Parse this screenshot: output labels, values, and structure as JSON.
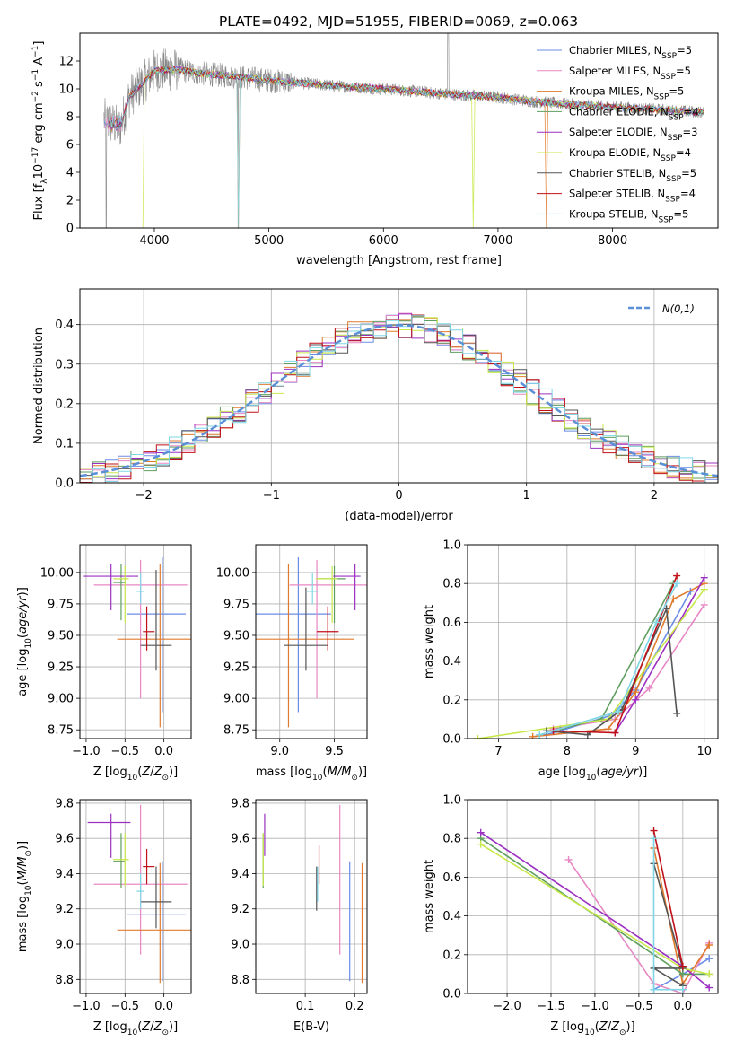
{
  "figure": {
    "title": "PLATE=0492, MJD=51955, FIBERID=0069, z=0.063"
  },
  "models": [
    {
      "name": "Chabrier MILES",
      "label": "Chabrier MILES, N",
      "nssp": "=5",
      "color": "#6b8ce6"
    },
    {
      "name": "Salpeter MILES",
      "label": "Salpeter MILES, N",
      "nssp": "=5",
      "color": "#e887c4"
    },
    {
      "name": "Kroupa MILES",
      "label": "Kroupa MILES, N",
      "nssp": "=5",
      "color": "#e07b2e"
    },
    {
      "name": "Chabrier ELODIE",
      "label": "Chabrier ELODIE, N",
      "nssp": "=4",
      "color": "#5f9e5f"
    },
    {
      "name": "Salpeter ELODIE",
      "label": "Salpeter ELODIE, N",
      "nssp": "=3",
      "color": "#9b30c0"
    },
    {
      "name": "Kroupa ELODIE",
      "label": "Kroupa ELODIE, N",
      "nssp": "=4",
      "color": "#c8e84a"
    },
    {
      "name": "Chabrier STELIB",
      "label": "Chabrier STELIB, N",
      "nssp": "=5",
      "color": "#555555"
    },
    {
      "name": "Salpeter STELIB",
      "label": "Salpeter STELIB, N",
      "nssp": "=4",
      "color": "#c0101a"
    },
    {
      "name": "Kroupa STELIB",
      "label": "Kroupa STELIB, N",
      "nssp": "=5",
      "color": "#7fd6e6"
    }
  ],
  "chart_data": [
    {
      "id": "spectrum",
      "type": "line",
      "xlabel": "wavelength [Angstrom, rest frame]",
      "ylabel": "Flux [f",
      "xlim": [
        3350,
        8920
      ],
      "ylim": [
        0,
        14
      ],
      "xticks": [
        4000,
        5000,
        6000,
        7000,
        8000
      ],
      "yticks": [
        0,
        2,
        4,
        6,
        8,
        10,
        12
      ],
      "continuum": [
        [
          3560,
          7.8
        ],
        [
          3700,
          7.2
        ],
        [
          3780,
          9.4
        ],
        [
          3900,
          10.4
        ],
        [
          4000,
          11.3
        ],
        [
          4200,
          11.4
        ],
        [
          4400,
          11.1
        ],
        [
          4700,
          10.9
        ],
        [
          5000,
          10.6
        ],
        [
          5300,
          10.4
        ],
        [
          5600,
          10.2
        ],
        [
          6000,
          10.0
        ],
        [
          6300,
          9.8
        ],
        [
          6600,
          9.6
        ],
        [
          7000,
          9.4
        ],
        [
          7300,
          9.1
        ],
        [
          7600,
          8.9
        ],
        [
          8000,
          8.7
        ],
        [
          8400,
          8.5
        ],
        [
          8800,
          8.3
        ]
      ],
      "data_range": [
        3560,
        8800
      ],
      "model_range": [
        3560,
        8800
      ],
      "legend_position": "upper right"
    },
    {
      "id": "residuals",
      "type": "histogram",
      "xlabel": "(data-model)/error",
      "ylabel": "Normed distribution",
      "xlim": [
        -2.5,
        2.5
      ],
      "ylim": [
        0,
        0.49
      ],
      "xticks": [
        -2,
        -1,
        0,
        1,
        2
      ],
      "yticks": [
        0,
        0.1,
        0.2,
        0.3,
        0.4
      ],
      "grid": true,
      "reference_curve": "N(0,1)",
      "bin_width": 0.1,
      "legend_position": "upper right"
    },
    {
      "id": "age-vs-Z",
      "type": "scatter",
      "xlabel": "Z [log",
      "ylabel": "age  [log",
      "xlim": [
        -1.08,
        0.35
      ],
      "ylim": [
        8.68,
        10.22
      ],
      "xticks": [
        -1.0,
        -0.5,
        0.0
      ],
      "yticks": [
        8.75,
        9.0,
        9.25,
        9.5,
        9.75,
        10.0
      ],
      "grid": true,
      "points": [
        {
          "x": -0.02,
          "y": 9.67,
          "xerr": [
            0.45,
            0.3
          ],
          "yerr": [
            0.78,
            0.45
          ],
          "model": 0
        },
        {
          "x": -0.3,
          "y": 9.9,
          "xerr": [
            0.6,
            0.6
          ],
          "yerr": [
            0.9,
            0.2
          ],
          "model": 1
        },
        {
          "x": -0.05,
          "y": 9.47,
          "xerr": [
            0.55,
            0.4
          ],
          "yerr": [
            0.7,
            0.6
          ],
          "model": 2
        },
        {
          "x": -0.55,
          "y": 9.92,
          "xerr": [
            0.1,
            0.05
          ],
          "yerr": [
            0.3,
            0.15
          ],
          "model": 3
        },
        {
          "x": -0.68,
          "y": 9.97,
          "xerr": [
            0.35,
            0.35
          ],
          "yerr": [
            0.27,
            0.1
          ],
          "model": 4
        },
        {
          "x": -0.5,
          "y": 9.95,
          "xerr": [
            0.15,
            0.05
          ],
          "yerr": [
            0.35,
            0.1
          ],
          "model": 5
        },
        {
          "x": -0.1,
          "y": 9.42,
          "xerr": [
            0.2,
            0.2
          ],
          "yerr": [
            0.2,
            0.6
          ],
          "model": 6
        },
        {
          "x": -0.22,
          "y": 9.53,
          "xerr": [
            0.05,
            0.1
          ],
          "yerr": [
            0.15,
            0.2
          ],
          "model": 7
        },
        {
          "x": -0.3,
          "y": 9.85,
          "xerr": [
            0.05,
            0.05
          ],
          "yerr": [
            0.1,
            0.15
          ],
          "model": 8
        }
      ]
    },
    {
      "id": "age-vs-mass",
      "type": "scatter",
      "xlabel": "mass [log",
      "ylabel": "",
      "xlim": [
        8.78,
        9.8
      ],
      "ylim": [
        8.68,
        10.22
      ],
      "xticks": [
        9.0,
        9.5
      ],
      "yticks": [
        8.75,
        9.0,
        9.25,
        9.5,
        9.75,
        10.0
      ],
      "grid": true,
      "points": [
        {
          "x": 9.17,
          "y": 9.67,
          "xerr": [
            0.4,
            0.3
          ],
          "yerr": [
            0.78,
            0.45
          ],
          "model": 0
        },
        {
          "x": 9.34,
          "y": 9.9,
          "xerr": [
            0.25,
            0.6
          ],
          "yerr": [
            0.9,
            0.2
          ],
          "model": 1
        },
        {
          "x": 9.08,
          "y": 9.47,
          "xerr": [
            0.3,
            0.6
          ],
          "yerr": [
            0.7,
            0.6
          ],
          "model": 2
        },
        {
          "x": 9.5,
          "y": 9.95,
          "xerr": [
            0.15,
            0.1
          ],
          "yerr": [
            0.35,
            0.1
          ],
          "model": 3
        },
        {
          "x": 9.69,
          "y": 9.97,
          "xerr": [
            0.2,
            0.05
          ],
          "yerr": [
            0.27,
            0.1
          ],
          "model": 4
        },
        {
          "x": 9.48,
          "y": 9.95,
          "xerr": [
            0.15,
            0.05
          ],
          "yerr": [
            0.35,
            0.1
          ],
          "model": 5
        },
        {
          "x": 9.24,
          "y": 9.42,
          "xerr": [
            0.2,
            0.2
          ],
          "yerr": [
            0.2,
            0.46
          ],
          "model": 6
        },
        {
          "x": 9.44,
          "y": 9.53,
          "xerr": [
            0.1,
            0.1
          ],
          "yerr": [
            0.15,
            0.2
          ],
          "model": 7
        },
        {
          "x": 9.3,
          "y": 9.85,
          "xerr": [
            0.05,
            0.05
          ],
          "yerr": [
            0.1,
            0.15
          ],
          "model": 8
        }
      ]
    },
    {
      "id": "mass-weight-vs-age",
      "type": "line",
      "xlabel": "age  [log",
      "ylabel": "mass weight",
      "xlim": [
        6.55,
        10.2
      ],
      "ylim": [
        0,
        1.0
      ],
      "xticks": [
        7,
        8,
        9,
        10
      ],
      "yticks": [
        0.0,
        0.2,
        0.4,
        0.6,
        0.8,
        1.0
      ],
      "grid": true,
      "series": [
        {
          "model": 0,
          "x": [
            7.7,
            8.65,
            9.0,
            9.8
          ],
          "y": [
            0.02,
            0.12,
            0.25,
            0.76
          ]
        },
        {
          "model": 1,
          "x": [
            7.8,
            8.7,
            9.2,
            10.0
          ],
          "y": [
            0.05,
            0.1,
            0.26,
            0.69
          ]
        },
        {
          "model": 2,
          "x": [
            7.5,
            8.6,
            9.0,
            9.55,
            10.0
          ],
          "y": [
            0.01,
            0.05,
            0.24,
            0.72,
            0.8
          ]
        },
        {
          "model": 3,
          "x": [
            7.9,
            8.5,
            9.55
          ],
          "y": [
            0.05,
            0.1,
            0.8
          ]
        },
        {
          "model": 4,
          "x": [
            8.7,
            9.0,
            10.0
          ],
          "y": [
            0.03,
            0.2,
            0.83
          ]
        },
        {
          "model": 5,
          "x": [
            6.7,
            8.6,
            10.0
          ],
          "y": [
            0.0,
            0.1,
            0.77
          ]
        },
        {
          "model": 6,
          "x": [
            7.7,
            8.3,
            8.8,
            9.45,
            9.6
          ],
          "y": [
            0.04,
            0.02,
            0.15,
            0.67,
            0.13
          ]
        },
        {
          "model": 7,
          "x": [
            7.8,
            8.7,
            9.6
          ],
          "y": [
            0.04,
            0.03,
            0.84
          ]
        },
        {
          "model": 8,
          "x": [
            7.6,
            8.75,
            9.3,
            9.6
          ],
          "y": [
            0.02,
            0.14,
            0.6,
            0.8
          ]
        }
      ]
    },
    {
      "id": "mass-vs-Z",
      "type": "scatter",
      "xlabel": "Z [log",
      "ylabel": "mass [log",
      "xlim": [
        -1.08,
        0.35
      ],
      "ylim": [
        8.72,
        9.82
      ],
      "xticks": [
        -1.0,
        -0.5,
        0.0
      ],
      "yticks": [
        8.8,
        9.0,
        9.2,
        9.4,
        9.6,
        9.8
      ],
      "grid": true,
      "points": [
        {
          "x": -0.02,
          "y": 9.17,
          "xerr": [
            0.45,
            0.3
          ],
          "yerr": [
            0.38,
            0.3
          ],
          "model": 0
        },
        {
          "x": -0.3,
          "y": 9.34,
          "xerr": [
            0.6,
            0.6
          ],
          "yerr": [
            0.4,
            0.45
          ],
          "model": 1
        },
        {
          "x": -0.05,
          "y": 9.08,
          "xerr": [
            0.55,
            0.4
          ],
          "yerr": [
            0.3,
            0.38
          ],
          "model": 2
        },
        {
          "x": -0.55,
          "y": 9.47,
          "xerr": [
            0.1,
            0.05
          ],
          "yerr": [
            0.15,
            0.16
          ],
          "model": 3
        },
        {
          "x": -0.68,
          "y": 9.69,
          "xerr": [
            0.3,
            0.25
          ],
          "yerr": [
            0.2,
            0.05
          ],
          "model": 4
        },
        {
          "x": -0.5,
          "y": 9.48,
          "xerr": [
            0.15,
            0.05
          ],
          "yerr": [
            0.15,
            0.15
          ],
          "model": 5
        },
        {
          "x": -0.1,
          "y": 9.24,
          "xerr": [
            0.2,
            0.2
          ],
          "yerr": [
            0.15,
            0.2
          ],
          "model": 6
        },
        {
          "x": -0.22,
          "y": 9.44,
          "xerr": [
            0.05,
            0.1
          ],
          "yerr": [
            0.1,
            0.1
          ],
          "model": 7
        },
        {
          "x": -0.3,
          "y": 9.3,
          "xerr": [
            0.05,
            0.05
          ],
          "yerr": [
            0.1,
            0.1
          ],
          "model": 8
        }
      ]
    },
    {
      "id": "mass-vs-EBV",
      "type": "scatter",
      "xlabel": "E(B-V)",
      "ylabel": "",
      "xlim": [
        0.0,
        0.225
      ],
      "ylim": [
        8.72,
        9.82
      ],
      "xticks": [
        0.1,
        0.2
      ],
      "yticks": [
        8.8,
        9.0,
        9.2,
        9.4,
        9.6,
        9.8
      ],
      "grid": true,
      "points": [
        {
          "x": 0.19,
          "y": 9.17,
          "yerr": [
            0.38,
            0.3
          ],
          "model": 0
        },
        {
          "x": 0.17,
          "y": 9.34,
          "yerr": [
            0.4,
            0.45
          ],
          "model": 1
        },
        {
          "x": 0.215,
          "y": 9.08,
          "yerr": [
            0.3,
            0.38
          ],
          "model": 2
        },
        {
          "x": 0.015,
          "y": 9.47,
          "yerr": [
            0.15,
            0.16
          ],
          "model": 3
        },
        {
          "x": 0.018,
          "y": 9.62,
          "yerr": [
            0.12,
            0.12
          ],
          "model": 4
        },
        {
          "x": 0.015,
          "y": 9.48,
          "yerr": [
            0.15,
            0.15
          ],
          "model": 5
        },
        {
          "x": 0.123,
          "y": 9.32,
          "yerr": [
            0.13,
            0.12
          ],
          "model": 6
        },
        {
          "x": 0.128,
          "y": 9.44,
          "yerr": [
            0.1,
            0.12
          ],
          "model": 7
        },
        {
          "x": 0.125,
          "y": 9.34,
          "yerr": [
            0.1,
            0.1
          ],
          "model": 8
        }
      ]
    },
    {
      "id": "mass-weight-vs-Z",
      "type": "line",
      "xlabel": "Z [log",
      "ylabel": "mass weight",
      "xlim": [
        -2.45,
        0.4
      ],
      "ylim": [
        0,
        1.0
      ],
      "xticks": [
        -2.0,
        -1.5,
        -1.0,
        -0.5,
        0.0
      ],
      "yticks": [
        0.0,
        0.2,
        0.4,
        0.6,
        0.8,
        1.0
      ],
      "grid": true,
      "series": [
        {
          "model": 0,
          "x": [
            -0.33,
            0.0,
            0.3
          ],
          "y": [
            0.02,
            0.1,
            0.18
          ]
        },
        {
          "model": 1,
          "x": [
            -1.3,
            -0.33,
            0.0,
            0.3
          ],
          "y": [
            0.69,
            0.05,
            0.0,
            0.26
          ]
        },
        {
          "model": 2,
          "x": [
            -0.33,
            0.0,
            0.3
          ],
          "y": [
            0.75,
            0.05,
            0.25
          ]
        },
        {
          "model": 3,
          "x": [
            -2.3,
            0.0,
            0.3
          ],
          "y": [
            0.8,
            0.1,
            0.1
          ]
        },
        {
          "model": 4,
          "x": [
            -2.3,
            0.0,
            0.3
          ],
          "y": [
            0.83,
            0.14,
            0.03
          ]
        },
        {
          "model": 5,
          "x": [
            -2.3,
            0.0,
            0.3
          ],
          "y": [
            0.77,
            0.13,
            0.1
          ]
        },
        {
          "model": 6,
          "x": [
            -0.33,
            0.0,
            -0.33,
            0.0
          ],
          "y": [
            0.67,
            0.13,
            0.13,
            0.04
          ]
        },
        {
          "model": 7,
          "x": [
            -0.33,
            0.0
          ],
          "y": [
            0.84,
            0.14
          ]
        },
        {
          "model": 8,
          "x": [
            -0.33,
            -0.33,
            0.0
          ],
          "y": [
            0.8,
            0.02,
            0.02
          ]
        }
      ]
    }
  ],
  "legends": {
    "spectrum_sub": "SSP",
    "histogram_label": "N(0,1)"
  }
}
